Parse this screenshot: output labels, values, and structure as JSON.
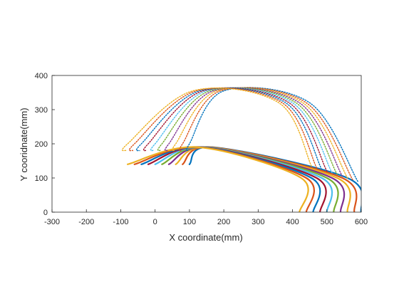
{
  "chart_data": {
    "type": "line",
    "title": "",
    "xlabel": "X coordinate(mm)",
    "ylabel": "Y cooridnate(mm)",
    "xlim": [
      -300,
      600
    ],
    "ylim": [
      0,
      400
    ],
    "xticks": [
      -300,
      -200,
      -100,
      0,
      100,
      200,
      300,
      400,
      500,
      600
    ],
    "yticks": [
      0,
      100,
      200,
      300,
      400
    ],
    "grid": false,
    "legend": "none",
    "series_colors": [
      "#0072BD",
      "#D95319",
      "#EDB120",
      "#7E2F8E",
      "#77AC30",
      "#4DBEEE",
      "#A2142F"
    ],
    "series": [
      {
        "group": "lower",
        "dotted": false,
        "values": [
          [
            600,
            0
          ],
          [
            560,
            100
          ],
          [
            170,
            190
          ],
          [
            100,
            140
          ]
        ]
      },
      {
        "group": "lower",
        "dotted": false,
        "values": [
          [
            580,
            0
          ],
          [
            545,
            100
          ],
          [
            165,
            190
          ],
          [
            80,
            140
          ]
        ]
      },
      {
        "group": "lower",
        "dotted": false,
        "values": [
          [
            560,
            0
          ],
          [
            530,
            100
          ],
          [
            160,
            190
          ],
          [
            60,
            140
          ]
        ]
      },
      {
        "group": "lower",
        "dotted": false,
        "values": [
          [
            540,
            0
          ],
          [
            515,
            100
          ],
          [
            155,
            190
          ],
          [
            40,
            140
          ]
        ]
      },
      {
        "group": "lower",
        "dotted": false,
        "values": [
          [
            520,
            0
          ],
          [
            500,
            100
          ],
          [
            150,
            190
          ],
          [
            20,
            140
          ]
        ]
      },
      {
        "group": "lower",
        "dotted": false,
        "values": [
          [
            500,
            0
          ],
          [
            485,
            100
          ],
          [
            145,
            190
          ],
          [
            0,
            140
          ]
        ]
      },
      {
        "group": "lower",
        "dotted": false,
        "values": [
          [
            480,
            0
          ],
          [
            470,
            100
          ],
          [
            140,
            190
          ],
          [
            -20,
            140
          ]
        ]
      },
      {
        "group": "lower",
        "dotted": false,
        "values": [
          [
            460,
            0
          ],
          [
            455,
            100
          ],
          [
            135,
            190
          ],
          [
            -40,
            140
          ]
        ]
      },
      {
        "group": "lower",
        "dotted": false,
        "values": [
          [
            440,
            0
          ],
          [
            440,
            100
          ],
          [
            130,
            190
          ],
          [
            -60,
            140
          ]
        ]
      },
      {
        "group": "lower",
        "dotted": false,
        "values": [
          [
            420,
            0
          ],
          [
            425,
            100
          ],
          [
            125,
            190
          ],
          [
            -80,
            140
          ]
        ]
      },
      {
        "group": "upper",
        "dotted": true,
        "values": [
          [
            590,
            90
          ],
          [
            450,
            320
          ],
          [
            200,
            355
          ],
          [
            100,
            200
          ],
          [
            95,
            180
          ]
        ]
      },
      {
        "group": "upper",
        "dotted": true,
        "values": [
          [
            575,
            95
          ],
          [
            440,
            320
          ],
          [
            190,
            355
          ],
          [
            80,
            200
          ],
          [
            75,
            180
          ]
        ]
      },
      {
        "group": "upper",
        "dotted": true,
        "values": [
          [
            560,
            100
          ],
          [
            430,
            320
          ],
          [
            180,
            355
          ],
          [
            60,
            200
          ],
          [
            55,
            180
          ]
        ]
      },
      {
        "group": "upper",
        "dotted": true,
        "values": [
          [
            545,
            105
          ],
          [
            420,
            320
          ],
          [
            170,
            355
          ],
          [
            40,
            200
          ],
          [
            35,
            180
          ]
        ]
      },
      {
        "group": "upper",
        "dotted": true,
        "values": [
          [
            530,
            110
          ],
          [
            410,
            320
          ],
          [
            160,
            355
          ],
          [
            20,
            200
          ],
          [
            15,
            180
          ]
        ]
      },
      {
        "group": "upper",
        "dotted": true,
        "values": [
          [
            515,
            115
          ],
          [
            400,
            320
          ],
          [
            150,
            355
          ],
          [
            0,
            200
          ],
          [
            -5,
            180
          ]
        ]
      },
      {
        "group": "upper",
        "dotted": true,
        "values": [
          [
            500,
            120
          ],
          [
            390,
            320
          ],
          [
            140,
            355
          ],
          [
            -20,
            200
          ],
          [
            -25,
            180
          ]
        ]
      },
      {
        "group": "upper",
        "dotted": true,
        "values": [
          [
            485,
            125
          ],
          [
            380,
            320
          ],
          [
            130,
            355
          ],
          [
            -40,
            200
          ],
          [
            -45,
            180
          ]
        ]
      },
      {
        "group": "upper",
        "dotted": true,
        "values": [
          [
            470,
            130
          ],
          [
            370,
            320
          ],
          [
            120,
            355
          ],
          [
            -60,
            200
          ],
          [
            -65,
            180
          ]
        ]
      },
      {
        "group": "upper",
        "dotted": true,
        "values": [
          [
            455,
            135
          ],
          [
            360,
            320
          ],
          [
            110,
            355
          ],
          [
            -80,
            200
          ],
          [
            -85,
            180
          ]
        ]
      }
    ]
  }
}
